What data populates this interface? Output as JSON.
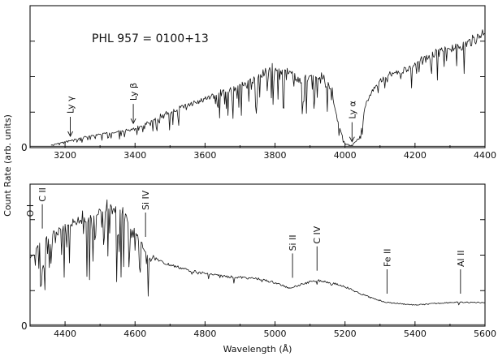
{
  "figure": {
    "ylabel": "Count Rate (arb. units)",
    "xlabel": "Wavelength (Å)",
    "zero_label": "0"
  },
  "chart_data": [
    {
      "type": "line",
      "title": "PHL 957 = 0100+13",
      "xlim": [
        3100,
        4400
      ],
      "xticks": [
        3200,
        3400,
        3600,
        3800,
        4000,
        4200,
        4400
      ],
      "xtick_labels": [
        "3200",
        "3400",
        "3600",
        "3800",
        "4000",
        "4200",
        "4400"
      ],
      "ylim": [
        0,
        1.05
      ],
      "xlabel": "",
      "ylabel": "Count Rate (arb. units)",
      "series": [
        {
          "name": "spectrum",
          "x": [
            3160,
            3200,
            3260,
            3320,
            3380,
            3420,
            3480,
            3540,
            3600,
            3660,
            3700,
            3740,
            3760,
            3790,
            3810,
            3840,
            3870,
            3900,
            3930,
            3960,
            3980,
            4000,
            4020,
            4040,
            4060,
            4080,
            4100,
            4140,
            4180,
            4220,
            4260,
            4300,
            4340,
            4380,
            4400
          ],
          "values": [
            0.02,
            0.05,
            0.09,
            0.12,
            0.14,
            0.18,
            0.26,
            0.34,
            0.4,
            0.46,
            0.5,
            0.55,
            0.6,
            0.66,
            0.64,
            0.62,
            0.55,
            0.58,
            0.56,
            0.5,
            0.2,
            0.03,
            0.02,
            0.08,
            0.35,
            0.45,
            0.52,
            0.58,
            0.62,
            0.68,
            0.74,
            0.78,
            0.8,
            0.86,
            0.92
          ]
        }
      ],
      "annotations": [
        {
          "label": "Ly γ",
          "x": 3215
        },
        {
          "label": "Ly β",
          "x": 3395
        },
        {
          "label": "Ly α",
          "x": 4020
        }
      ]
    },
    {
      "type": "line",
      "title": "",
      "xlim": [
        4300,
        5600
      ],
      "xticks": [
        4400,
        4600,
        4800,
        5000,
        5200,
        5400,
        5600
      ],
      "xtick_labels": [
        "4400",
        "4600",
        "4800",
        "5000",
        "5200",
        "5400",
        "5600"
      ],
      "ylim": [
        0,
        1.05
      ],
      "xlabel": "Wavelength (Å)",
      "ylabel": "",
      "series": [
        {
          "name": "spectrum",
          "x": [
            4300,
            4330,
            4360,
            4400,
            4440,
            4480,
            4520,
            4550,
            4580,
            4610,
            4640,
            4680,
            4720,
            4760,
            4800,
            4850,
            4900,
            4950,
            5000,
            5040,
            5080,
            5120,
            5160,
            5200,
            5240,
            5280,
            5320,
            5360,
            5400,
            5450,
            5500,
            5550,
            5600
          ],
          "values": [
            0.55,
            0.65,
            0.72,
            0.8,
            0.85,
            0.9,
            0.94,
            0.92,
            0.85,
            0.7,
            0.55,
            0.48,
            0.45,
            0.42,
            0.4,
            0.38,
            0.37,
            0.36,
            0.33,
            0.29,
            0.32,
            0.35,
            0.33,
            0.3,
            0.25,
            0.21,
            0.18,
            0.17,
            0.16,
            0.17,
            0.18,
            0.18,
            0.18
          ]
        }
      ],
      "annotations": [
        {
          "label": "O I",
          "x": 4300
        },
        {
          "label": "C II",
          "x": 4335
        },
        {
          "label": "Si IV",
          "x": 4630
        },
        {
          "label": "Si II",
          "x": 5050
        },
        {
          "label": "C IV",
          "x": 5120
        },
        {
          "label": "Fe II",
          "x": 5320
        },
        {
          "label": "Al II",
          "x": 5530
        }
      ]
    }
  ]
}
